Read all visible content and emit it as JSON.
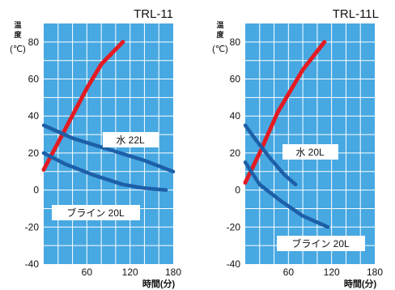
{
  "chart_data": [
    {
      "type": "line",
      "title": "TRL-11",
      "ylabel": "温度(℃)",
      "xlabel": "時間(分)",
      "xlim": [
        0,
        180
      ],
      "ylim": [
        -40,
        90
      ],
      "x_ticks": [
        "60",
        "120",
        "180"
      ],
      "y_ticks": [
        "80",
        "60",
        "40",
        "20",
        "0",
        "-20",
        "-40"
      ],
      "grid": true,
      "series": [
        {
          "name": "",
          "color": "#e31b23",
          "points": [
            [
              0,
              11
            ],
            [
              30,
              33
            ],
            [
              60,
              55
            ],
            [
              80,
              68
            ],
            [
              110,
              80
            ]
          ]
        },
        {
          "name": "水 22L",
          "color": "#1d5fa8",
          "points": [
            [
              0,
              35
            ],
            [
              40,
              28
            ],
            [
              90,
              22
            ],
            [
              140,
              16
            ],
            [
              180,
              10
            ]
          ]
        },
        {
          "name": "ブライン 20L",
          "color": "#1d5fa8",
          "points": [
            [
              0,
              20
            ],
            [
              30,
              14
            ],
            [
              70,
              8
            ],
            [
              110,
              3
            ],
            [
              140,
              1
            ],
            [
              170,
              0
            ]
          ]
        }
      ],
      "annotations": [
        {
          "text": "水 22L",
          "series": 1
        },
        {
          "text": "ブライン 20L",
          "series": 2
        }
      ]
    },
    {
      "type": "line",
      "title": "TRL-11L",
      "ylabel": "温度(℃)",
      "xlabel": "時間(分)",
      "xlim": [
        0,
        180
      ],
      "ylim": [
        -40,
        90
      ],
      "x_ticks": [
        "60",
        "120",
        "180"
      ],
      "y_ticks": [
        "80",
        "60",
        "40",
        "20",
        "0",
        "-20",
        "-40"
      ],
      "grid": true,
      "series": [
        {
          "name": "",
          "color": "#e31b23",
          "points": [
            [
              0,
              4
            ],
            [
              20,
              20
            ],
            [
              45,
              42
            ],
            [
              80,
              65
            ],
            [
              110,
              80
            ]
          ]
        },
        {
          "name": "水 20L",
          "color": "#1d5fa8",
          "points": [
            [
              0,
              35
            ],
            [
              15,
              27
            ],
            [
              35,
              17
            ],
            [
              55,
              8
            ],
            [
              70,
              3
            ]
          ]
        },
        {
          "name": "ブライン 20L",
          "color": "#1d5fa8",
          "points": [
            [
              0,
              15
            ],
            [
              20,
              3
            ],
            [
              50,
              -6
            ],
            [
              80,
              -14
            ],
            [
              115,
              -20
            ]
          ]
        }
      ],
      "annotations": [
        {
          "text": "水 20L",
          "series": 1
        },
        {
          "text": "ブライン 20L",
          "series": 2
        }
      ]
    }
  ]
}
